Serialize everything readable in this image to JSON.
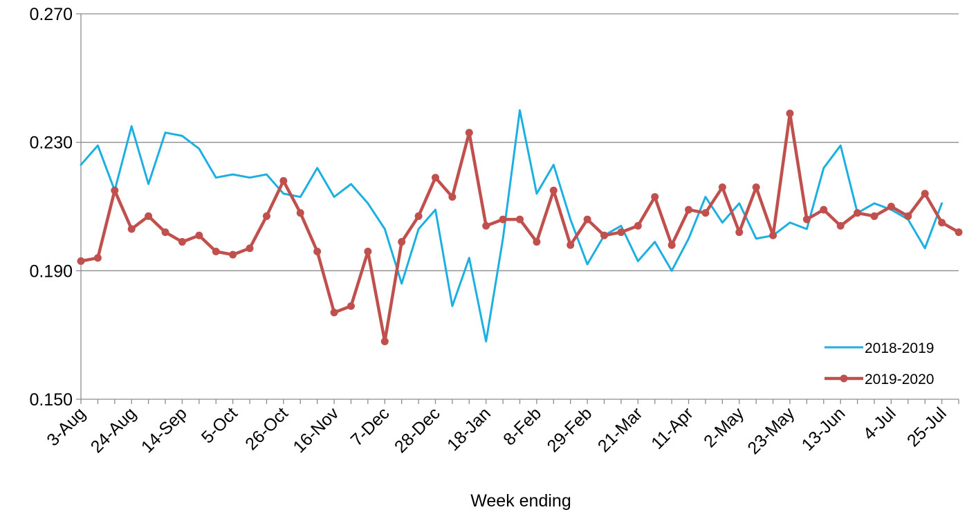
{
  "chart_data": {
    "type": "line",
    "xlabel": "Week ending",
    "ylabel": "",
    "ylim": [
      0.15,
      0.27
    ],
    "yticks": [
      "0.150",
      "0.190",
      "0.230",
      "0.270"
    ],
    "ytick_values": [
      0.15,
      0.19,
      0.23,
      0.27
    ],
    "grid": "horizontal",
    "legend_position": "bottom-right",
    "x_tick_labels": [
      "3-Aug",
      "24-Aug",
      "14-Sep",
      "5-Oct",
      "26-Oct",
      "16-Nov",
      "7-Dec",
      "28-Dec",
      "18-Jan",
      "8-Feb",
      "29-Feb",
      "21-Mar",
      "11-Apr",
      "2-May",
      "23-May",
      "13-Jun",
      "4-Jul",
      "25-Jul"
    ],
    "x_tick_label_interval": 3,
    "point_count": 53,
    "series": [
      {
        "name": "2018-2019",
        "color": "#1CB0E2",
        "markers": false,
        "values": [
          0.223,
          0.229,
          0.215,
          0.235,
          0.217,
          0.233,
          0.232,
          0.228,
          0.219,
          0.22,
          0.219,
          0.22,
          0.214,
          0.213,
          0.222,
          0.213,
          0.217,
          0.211,
          0.203,
          0.186,
          0.203,
          0.209,
          0.179,
          0.194,
          0.168,
          0.2,
          0.24,
          0.214,
          0.223,
          0.206,
          0.192,
          0.201,
          0.204,
          0.193,
          0.199,
          0.19,
          0.2,
          0.213,
          0.205,
          0.211,
          0.2,
          0.201,
          0.205,
          0.203,
          0.222,
          0.229,
          0.208,
          0.211,
          0.209,
          0.206,
          0.197,
          0.211,
          null
        ]
      },
      {
        "name": "2019-2020",
        "color": "#C0504D",
        "markers": true,
        "values": [
          0.193,
          0.194,
          0.215,
          0.203,
          0.207,
          0.202,
          0.199,
          0.201,
          0.196,
          0.195,
          0.197,
          0.207,
          0.218,
          0.208,
          0.196,
          0.177,
          0.179,
          0.196,
          0.168,
          0.199,
          0.207,
          0.219,
          0.213,
          0.233,
          0.204,
          0.206,
          0.206,
          0.199,
          0.215,
          0.198,
          0.206,
          0.201,
          0.202,
          0.204,
          0.213,
          0.198,
          0.209,
          0.208,
          0.216,
          0.202,
          0.216,
          0.201,
          0.239,
          0.206,
          0.209,
          0.204,
          0.208,
          0.207,
          0.21,
          0.207,
          0.214,
          0.205,
          0.202
        ]
      }
    ]
  }
}
